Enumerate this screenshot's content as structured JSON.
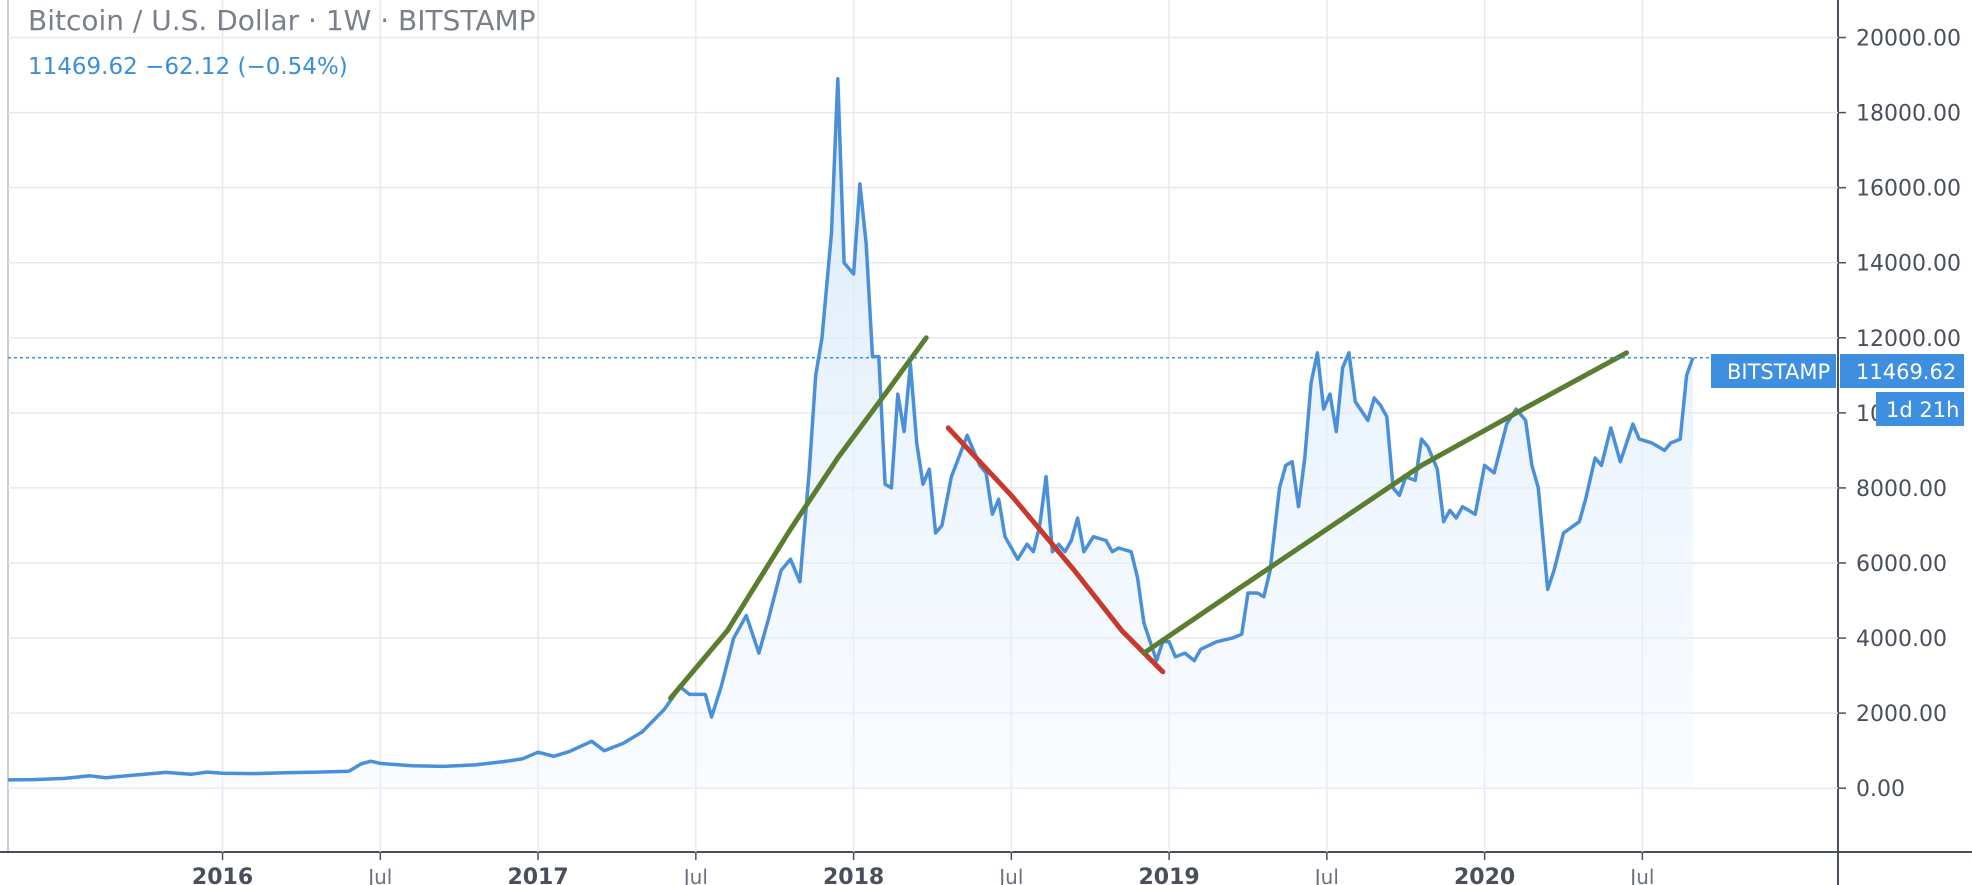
{
  "header": {
    "title": "Bitcoin / U.S. Dollar · 1W · BITSTAMP",
    "quote": "11469.62 −62.12 (−0.54%)"
  },
  "colors": {
    "price_line": "#4a90d9",
    "area_top": "#d6e8f9",
    "trend_up": "#5a7d2f",
    "trend_down": "#c9392b",
    "price_tag": "#3f8fe0",
    "grid": "#e7e9ee"
  },
  "tags": {
    "exchange": "BITSTAMP",
    "last_price": "11469.62",
    "countdown": "1d 21h"
  },
  "chart_data": {
    "type": "line",
    "ylim": [
      -1700,
      21000
    ],
    "xlim": [
      2015.32,
      2021.12
    ],
    "last_price": 11469.62,
    "yticks": [
      {
        "value": 0,
        "label": "0.00"
      },
      {
        "value": 2000,
        "label": "2000.00"
      },
      {
        "value": 4000,
        "label": "4000.00"
      },
      {
        "value": 6000,
        "label": "6000.00"
      },
      {
        "value": 8000,
        "label": "8000.00"
      },
      {
        "value": 10000,
        "label": "10000.00"
      },
      {
        "value": 12000,
        "label": "12000.00"
      },
      {
        "value": 14000,
        "label": "14000.00"
      },
      {
        "value": 16000,
        "label": "16000.00"
      },
      {
        "value": 18000,
        "label": "18000.00"
      },
      {
        "value": 20000,
        "label": "20000.00"
      }
    ],
    "xticks": [
      {
        "value": 2016.0,
        "label": "2016",
        "major": true
      },
      {
        "value": 2016.5,
        "label": "Jul",
        "major": false
      },
      {
        "value": 2017.0,
        "label": "2017",
        "major": true
      },
      {
        "value": 2017.5,
        "label": "Jul",
        "major": false
      },
      {
        "value": 2018.0,
        "label": "2018",
        "major": true
      },
      {
        "value": 2018.5,
        "label": "Jul",
        "major": false
      },
      {
        "value": 2019.0,
        "label": "2019",
        "major": true
      },
      {
        "value": 2019.5,
        "label": "Jul",
        "major": false
      },
      {
        "value": 2020.0,
        "label": "2020",
        "major": true
      },
      {
        "value": 2020.5,
        "label": "Jul",
        "major": false
      }
    ],
    "series": [
      {
        "points": [
          [
            2015.32,
            220
          ],
          [
            2015.4,
            230
          ],
          [
            2015.5,
            260
          ],
          [
            2015.58,
            330
          ],
          [
            2015.63,
            280
          ],
          [
            2015.72,
            350
          ],
          [
            2015.82,
            420
          ],
          [
            2015.9,
            370
          ],
          [
            2015.95,
            430
          ],
          [
            2016.0,
            400
          ],
          [
            2016.1,
            390
          ],
          [
            2016.2,
            410
          ],
          [
            2016.3,
            430
          ],
          [
            2016.4,
            450
          ],
          [
            2016.44,
            650
          ],
          [
            2016.47,
            720
          ],
          [
            2016.5,
            660
          ],
          [
            2016.6,
            600
          ],
          [
            2016.7,
            580
          ],
          [
            2016.8,
            620
          ],
          [
            2016.9,
            720
          ],
          [
            2016.95,
            780
          ],
          [
            2017.0,
            960
          ],
          [
            2017.05,
            850
          ],
          [
            2017.1,
            980
          ],
          [
            2017.17,
            1250
          ],
          [
            2017.21,
            1000
          ],
          [
            2017.27,
            1200
          ],
          [
            2017.33,
            1500
          ],
          [
            2017.4,
            2100
          ],
          [
            2017.45,
            2700
          ],
          [
            2017.48,
            2500
          ],
          [
            2017.53,
            2500
          ],
          [
            2017.55,
            1900
          ],
          [
            2017.58,
            2700
          ],
          [
            2017.62,
            4000
          ],
          [
            2017.66,
            4600
          ],
          [
            2017.7,
            3600
          ],
          [
            2017.73,
            4500
          ],
          [
            2017.77,
            5800
          ],
          [
            2017.8,
            6100
          ],
          [
            2017.83,
            5500
          ],
          [
            2017.86,
            8500
          ],
          [
            2017.88,
            11000
          ],
          [
            2017.9,
            12000
          ],
          [
            2017.93,
            14800
          ],
          [
            2017.95,
            18900
          ],
          [
            2017.97,
            14000
          ],
          [
            2018.0,
            13700
          ],
          [
            2018.02,
            16100
          ],
          [
            2018.04,
            14500
          ],
          [
            2018.06,
            11500
          ],
          [
            2018.08,
            11500
          ],
          [
            2018.1,
            8100
          ],
          [
            2018.12,
            8000
          ],
          [
            2018.14,
            10500
          ],
          [
            2018.16,
            9500
          ],
          [
            2018.18,
            11300
          ],
          [
            2018.2,
            9200
          ],
          [
            2018.22,
            8100
          ],
          [
            2018.24,
            8500
          ],
          [
            2018.26,
            6800
          ],
          [
            2018.28,
            7000
          ],
          [
            2018.31,
            8300
          ],
          [
            2018.36,
            9400
          ],
          [
            2018.4,
            8600
          ],
          [
            2018.42,
            8400
          ],
          [
            2018.44,
            7300
          ],
          [
            2018.46,
            7700
          ],
          [
            2018.48,
            6700
          ],
          [
            2018.52,
            6100
          ],
          [
            2018.55,
            6500
          ],
          [
            2018.57,
            6300
          ],
          [
            2018.59,
            7000
          ],
          [
            2018.61,
            8300
          ],
          [
            2018.63,
            6300
          ],
          [
            2018.65,
            6500
          ],
          [
            2018.67,
            6300
          ],
          [
            2018.69,
            6600
          ],
          [
            2018.71,
            7200
          ],
          [
            2018.73,
            6300
          ],
          [
            2018.76,
            6700
          ],
          [
            2018.8,
            6600
          ],
          [
            2018.82,
            6300
          ],
          [
            2018.84,
            6400
          ],
          [
            2018.88,
            6300
          ],
          [
            2018.9,
            5600
          ],
          [
            2018.92,
            4400
          ],
          [
            2018.94,
            3900
          ],
          [
            2018.96,
            3400
          ],
          [
            2018.98,
            3900
          ],
          [
            2019.0,
            3900
          ],
          [
            2019.02,
            3500
          ],
          [
            2019.05,
            3600
          ],
          [
            2019.08,
            3400
          ],
          [
            2019.1,
            3700
          ],
          [
            2019.15,
            3900
          ],
          [
            2019.2,
            4000
          ],
          [
            2019.23,
            4100
          ],
          [
            2019.25,
            5200
          ],
          [
            2019.28,
            5200
          ],
          [
            2019.3,
            5100
          ],
          [
            2019.32,
            5800
          ],
          [
            2019.35,
            8000
          ],
          [
            2019.37,
            8600
          ],
          [
            2019.39,
            8700
          ],
          [
            2019.41,
            7500
          ],
          [
            2019.43,
            8800
          ],
          [
            2019.45,
            10800
          ],
          [
            2019.47,
            11600
          ],
          [
            2019.49,
            10100
          ],
          [
            2019.51,
            10500
          ],
          [
            2019.53,
            9500
          ],
          [
            2019.55,
            11200
          ],
          [
            2019.57,
            11600
          ],
          [
            2019.59,
            10300
          ],
          [
            2019.63,
            9800
          ],
          [
            2019.65,
            10400
          ],
          [
            2019.67,
            10200
          ],
          [
            2019.69,
            9900
          ],
          [
            2019.71,
            8000
          ],
          [
            2019.73,
            7800
          ],
          [
            2019.75,
            8300
          ],
          [
            2019.78,
            8200
          ],
          [
            2019.8,
            9300
          ],
          [
            2019.82,
            9100
          ],
          [
            2019.85,
            8500
          ],
          [
            2019.87,
            7100
          ],
          [
            2019.89,
            7400
          ],
          [
            2019.91,
            7200
          ],
          [
            2019.93,
            7500
          ],
          [
            2019.97,
            7300
          ],
          [
            2020.0,
            8600
          ],
          [
            2020.03,
            8400
          ],
          [
            2020.07,
            9700
          ],
          [
            2020.1,
            10100
          ],
          [
            2020.13,
            9800
          ],
          [
            2020.15,
            8600
          ],
          [
            2020.17,
            8000
          ],
          [
            2020.2,
            5300
          ],
          [
            2020.22,
            5800
          ],
          [
            2020.25,
            6800
          ],
          [
            2020.3,
            7100
          ],
          [
            2020.32,
            7700
          ],
          [
            2020.35,
            8800
          ],
          [
            2020.37,
            8600
          ],
          [
            2020.4,
            9600
          ],
          [
            2020.43,
            8700
          ],
          [
            2020.47,
            9700
          ],
          [
            2020.49,
            9300
          ],
          [
            2020.53,
            9200
          ],
          [
            2020.55,
            9100
          ],
          [
            2020.57,
            9000
          ],
          [
            2020.59,
            9200
          ],
          [
            2020.62,
            9300
          ],
          [
            2020.64,
            11000
          ],
          [
            2020.66,
            11469.62
          ]
        ]
      }
    ],
    "trendlines": [
      {
        "color_key": "trend_up",
        "points": [
          [
            2017.42,
            2400
          ],
          [
            2017.6,
            4200
          ],
          [
            2017.8,
            6900
          ],
          [
            2017.95,
            8800
          ],
          [
            2018.1,
            10500
          ],
          [
            2018.23,
            12000
          ]
        ]
      },
      {
        "color_key": "trend_down",
        "points": [
          [
            2018.3,
            9600
          ],
          [
            2018.5,
            7800
          ],
          [
            2018.7,
            5800
          ],
          [
            2018.85,
            4200
          ],
          [
            2018.98,
            3100
          ]
        ]
      },
      {
        "color_key": "trend_up",
        "points": [
          [
            2018.92,
            3600
          ],
          [
            2019.2,
            5200
          ],
          [
            2019.5,
            6900
          ],
          [
            2019.8,
            8600
          ],
          [
            2020.1,
            10000
          ],
          [
            2020.45,
            11600
          ]
        ]
      }
    ]
  }
}
